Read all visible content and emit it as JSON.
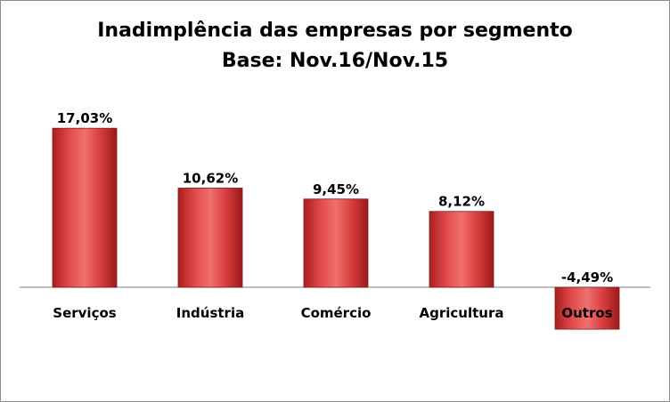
{
  "chart_data": {
    "type": "bar",
    "title_line1": "Inadimplência das empresas por segmento",
    "title_line2": "Base: Nov.16/Nov.15",
    "categories": [
      "Serviços",
      "Indústria",
      "Comércio",
      "Agricultura",
      "Outros"
    ],
    "values": [
      17.03,
      10.62,
      9.45,
      8.12,
      -4.49
    ],
    "value_labels": [
      "17,03%",
      "10,62%",
      "9,45%",
      "8,12%",
      "-4,49%"
    ],
    "xlabel": "",
    "ylabel": "",
    "ylim": [
      -4.49,
      17.03
    ],
    "grid": false,
    "legend": "none",
    "colors": {
      "bar": "#d03a3a",
      "bar_light": "#f07070",
      "bar_dark": "#9e1c1c",
      "axis": "#7f7f7f"
    }
  }
}
